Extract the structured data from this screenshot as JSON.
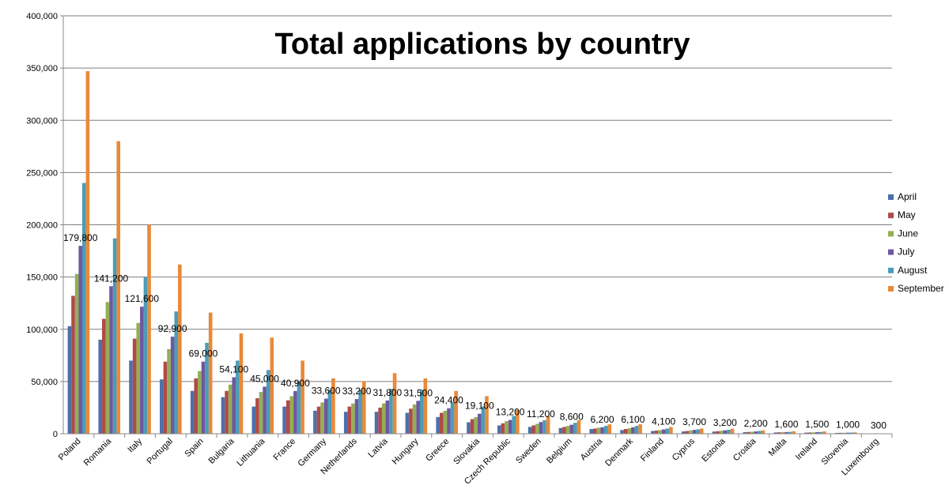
{
  "chart_data": {
    "type": "bar",
    "title": "Total applications by country",
    "xlabel": "",
    "ylabel": "",
    "ylim": [
      0,
      400000
    ],
    "yticks": [
      "0",
      "50,000",
      "100,000",
      "150,000",
      "200,000",
      "250,000",
      "300,000",
      "350,000",
      "400,000"
    ],
    "grid": true,
    "legend_position": "right",
    "categories": [
      "Poland",
      "Romania",
      "Italy",
      "Portugal",
      "Spain",
      "Bulgaria",
      "Lithuania",
      "France",
      "Germany",
      "Netherlands",
      "Latvia",
      "Hungary",
      "Greece",
      "Slovakia",
      "Czech Republic",
      "Sweden",
      "Belgium",
      "Austria",
      "Denmark",
      "Finland",
      "Cyprus",
      "Estonia",
      "Croatia",
      "Malta",
      "Ireland",
      "Slovenia",
      "Luxembourg"
    ],
    "series": [
      {
        "name": "April",
        "color": "#4F6FA8",
        "values": [
          103000,
          90000,
          70000,
          52000,
          41000,
          35000,
          26000,
          26000,
          22000,
          21000,
          21000,
          20000,
          16000,
          11000,
          8000,
          6500,
          5500,
          4500,
          3500,
          2600,
          2200,
          2100,
          1500,
          1200,
          1100,
          800,
          250
        ]
      },
      {
        "name": "May",
        "color": "#B04A48",
        "values": [
          132000,
          110000,
          91000,
          69000,
          53000,
          41000,
          34000,
          32000,
          26000,
          26000,
          25000,
          24000,
          20000,
          14000,
          10000,
          8000,
          6500,
          5000,
          4500,
          3000,
          2600,
          2400,
          1700,
          1350,
          1200,
          850,
          260
        ]
      },
      {
        "name": "June",
        "color": "#93AF55",
        "values": [
          153000,
          126000,
          106000,
          81000,
          60000,
          47000,
          40000,
          36000,
          30000,
          29000,
          29000,
          28000,
          22000,
          16000,
          12000,
          9500,
          7500,
          5800,
          5200,
          3500,
          3100,
          2800,
          1900,
          1450,
          1300,
          900,
          270
        ]
      },
      {
        "name": "July",
        "color": "#6E58A0",
        "values": [
          179800,
          141200,
          121600,
          92900,
          69000,
          54100,
          45000,
          40900,
          33600,
          33200,
          31800,
          31500,
          24400,
          19100,
          13200,
          11200,
          8600,
          6200,
          6100,
          4100,
          3700,
          3200,
          2200,
          1600,
          1500,
          1000,
          300
        ]
      },
      {
        "name": "August",
        "color": "#4A9DB8",
        "values": [
          240000,
          187000,
          150000,
          117000,
          87000,
          70000,
          61000,
          50000,
          42000,
          42000,
          43000,
          42000,
          30000,
          26000,
          17000,
          13000,
          10500,
          7500,
          7500,
          5000,
          4200,
          3800,
          2700,
          1800,
          1700,
          1100,
          320
        ]
      },
      {
        "name": "September",
        "color": "#E8893A",
        "values": [
          347000,
          280000,
          200000,
          162000,
          116000,
          96000,
          92000,
          70000,
          53000,
          50000,
          58000,
          53000,
          41000,
          36000,
          23000,
          17000,
          13000,
          9000,
          9000,
          6500,
          5000,
          4800,
          3200,
          2400,
          2200,
          1300,
          350
        ]
      }
    ],
    "data_labels": {
      "series": "July",
      "labels": [
        "179,800",
        "141,200",
        "121,600",
        "92,900",
        "69,000",
        "54,100",
        "45,000",
        "40,900",
        "33,600",
        "33,200",
        "31,800",
        "31,500",
        "24,400",
        "19,100",
        "13,200",
        "11,200",
        "8,600",
        "6,200",
        "6,100",
        "4,100",
        "3,700",
        "3,200",
        "2,200",
        "1,600",
        "1,500",
        "1,000",
        "300"
      ]
    }
  }
}
